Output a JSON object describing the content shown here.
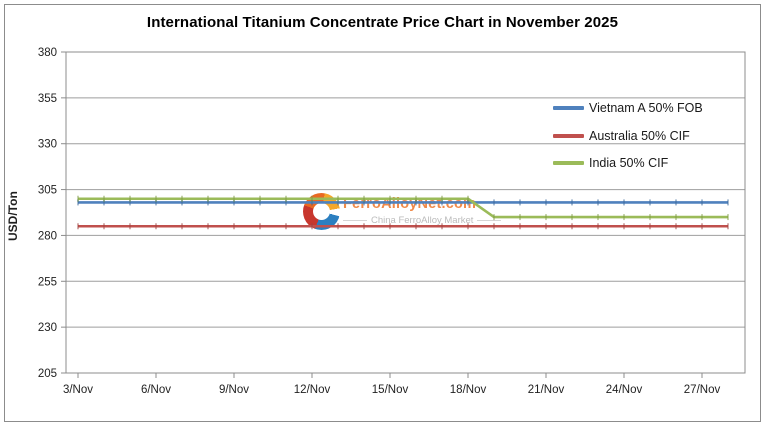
{
  "watermark": {
    "brand": "FerroAlloyNet.com",
    "tagline": "China FerroAlloy Market"
  },
  "chart_data": {
    "type": "line",
    "title": "International Titanium Concentrate Price Chart in November 2025",
    "xlabel": "",
    "ylabel": "USD/Ton",
    "ylim": [
      205,
      380
    ],
    "y_ticks": [
      380,
      355,
      330,
      305,
      280,
      255,
      230,
      205
    ],
    "x_tick_days": [
      3,
      6,
      9,
      12,
      15,
      18,
      21,
      24,
      27
    ],
    "x_tick_labels": [
      "3/Nov",
      "6/Nov",
      "9/Nov",
      "12/Nov",
      "15/Nov",
      "18/Nov",
      "21/Nov",
      "24/Nov",
      "27/Nov"
    ],
    "x_days": [
      3,
      4,
      5,
      6,
      7,
      8,
      9,
      10,
      11,
      12,
      13,
      14,
      15,
      16,
      17,
      18,
      19,
      20,
      21,
      22,
      23,
      24,
      25,
      26,
      27,
      28
    ],
    "grid": true,
    "legend_position": "inside-top-right",
    "series": [
      {
        "name": "Vietnam A 50% FOB",
        "color": "#4F81BD",
        "marker_color": "#3C6899",
        "values": [
          298,
          298,
          298,
          298,
          298,
          298,
          298,
          298,
          298,
          298,
          298,
          298,
          298,
          298,
          298,
          298,
          298,
          298,
          298,
          298,
          298,
          298,
          298,
          298,
          298,
          298
        ]
      },
      {
        "name": "Australia 50% CIF",
        "color": "#C0504D",
        "marker_color": "#9E4340",
        "values": [
          285,
          285,
          285,
          285,
          285,
          285,
          285,
          285,
          285,
          285,
          285,
          285,
          285,
          285,
          285,
          285,
          285,
          285,
          285,
          285,
          285,
          285,
          285,
          285,
          285,
          285
        ]
      },
      {
        "name": "India 50% CIF",
        "color": "#9BBB59",
        "marker_color": "#7E9C45",
        "values": [
          300,
          300,
          300,
          300,
          300,
          300,
          300,
          300,
          300,
          300,
          300,
          300,
          300,
          300,
          300,
          300,
          290,
          290,
          290,
          290,
          290,
          290,
          290,
          290,
          290,
          290
        ]
      }
    ],
    "colors": {
      "plot_border": "#8c8c8c",
      "gridline": "#9e9e9e",
      "tick_text": "#1f1f1f"
    }
  }
}
